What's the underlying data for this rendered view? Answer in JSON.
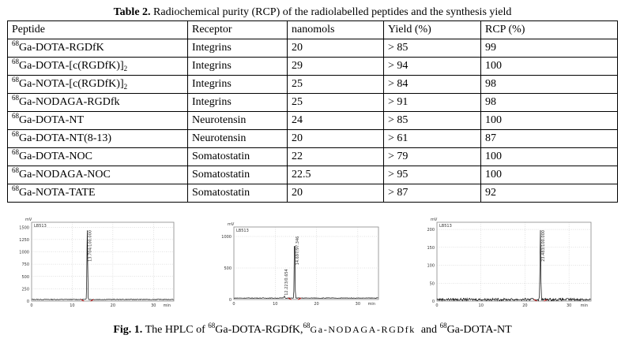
{
  "caption": {
    "label": "Table 2.",
    "text": "Radiochemical purity (RCP) of the radiolabelled peptides and the synthesis yield"
  },
  "table": {
    "headers": [
      "Peptide",
      "Receptor",
      "nanomols",
      "Yield (%)",
      "RCP (%)"
    ],
    "rows": [
      {
        "iso": "68",
        "peptide": "Ga-DOTA-RGDfK",
        "sub": "",
        "receptor": "Integrins",
        "nanomols": "20",
        "yield": "> 85",
        "rcp": "99"
      },
      {
        "iso": "68",
        "peptide": "Ga-DOTA-[c(RGDfK)]",
        "sub": "2",
        "receptor": "Integrins",
        "nanomols": "29",
        "yield": "> 94",
        "rcp": "100"
      },
      {
        "iso": "68",
        "peptide": "Ga-NOTA-[c(RGDfK)]",
        "sub": "2",
        "receptor": "Integrins",
        "nanomols": "25",
        "yield": "> 84",
        "rcp": "98"
      },
      {
        "iso": "68",
        "peptide": "Ga-NODAGA-RGDfk",
        "sub": "",
        "receptor": "Integrins",
        "nanomols": "25",
        "yield": "> 91",
        "rcp": "98"
      },
      {
        "iso": "68",
        "peptide": "Ga-DOTA-NT",
        "sub": "",
        "receptor": "Neurotensin",
        "nanomols": "24",
        "yield": "> 85",
        "rcp": "100"
      },
      {
        "iso": "68",
        "peptide": "Ga-DOTA-NT(8-13)",
        "sub": "",
        "receptor": "Neurotensin",
        "nanomols": "20",
        "yield": "> 61",
        "rcp": "87"
      },
      {
        "iso": "68",
        "peptide": "Ga-DOTA-NOC",
        "sub": "",
        "receptor": "Somatostatin",
        "nanomols": "22",
        "yield": "> 79",
        "rcp": "100"
      },
      {
        "iso": "68",
        "peptide": "Ga-NODAGA-NOC",
        "sub": "",
        "receptor": "Somatostatin",
        "nanomols": "22.5",
        "yield": "> 95",
        "rcp": "100"
      },
      {
        "iso": "68",
        "peptide": "Ga-NOTA-TATE",
        "sub": "",
        "receptor": "Somatostatin",
        "nanomols": "20",
        "yield": "> 87",
        "rcp": "92"
      }
    ]
  },
  "hplc_charts": [
    {
      "sample": "LB513",
      "y_unit": "mV",
      "x_unit": "min",
      "y_ticks": [
        "0",
        "250",
        "500",
        "750",
        "1000",
        "1250",
        "1500"
      ],
      "x_ticks": [
        "0",
        "10",
        "20",
        "30"
      ],
      "peak_label": "13.704/100.000"
    },
    {
      "sample": "LB513",
      "y_unit": "mV",
      "x_unit": "min",
      "y_ticks": [
        "0",
        "500",
        "1000"
      ],
      "x_ticks": [
        "0",
        "10",
        "20",
        "30"
      ],
      "peak_label": "14.697/97.346",
      "minor_label": "12.223/0.654"
    },
    {
      "sample": "LB513",
      "y_unit": "mV",
      "x_unit": "min",
      "y_ticks": [
        "0",
        "50",
        "100",
        "150",
        "200"
      ],
      "x_ticks": [
        "0",
        "10",
        "20",
        "30"
      ],
      "peak_label": "23.483/100.000"
    }
  ],
  "figure_caption": {
    "label": "Fig. 1.",
    "prefix": "The HPLC of",
    "iso": "68",
    "name1": "Ga-DOTA-RGDfK,",
    "name2": "Ga-NODAGA-RGDfk",
    "and": "and",
    "name3": "Ga-DOTA-NT"
  },
  "colors": {
    "trace": "#000000",
    "baseline_marker": "#d00000",
    "grid": "#b8b8b8"
  }
}
